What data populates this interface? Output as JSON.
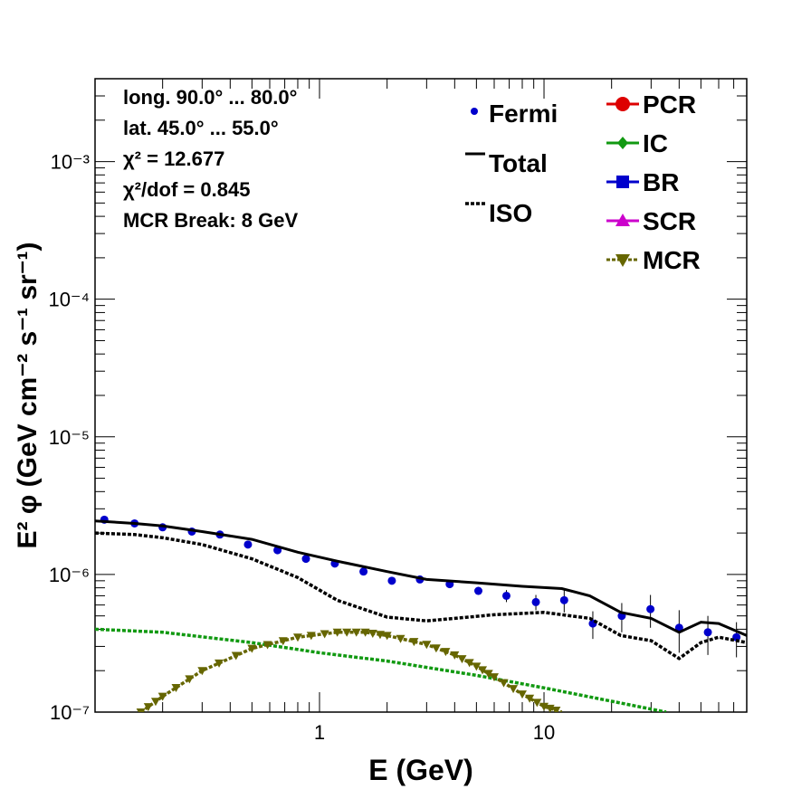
{
  "chart_data": {
    "type": "line",
    "xlabel": "E (GeV)",
    "ylabel": "E² φ (GeV cm⁻² s⁻¹ sr⁻¹)",
    "xscale": "log",
    "yscale": "log",
    "xlim": [
      0.1,
      80
    ],
    "ylim": [
      1e-07,
      0.004
    ],
    "x_tick_labels": [
      "1",
      "10"
    ],
    "y_tick_labels": [
      "10⁻⁷",
      "10⁻⁶",
      "10⁻⁵",
      "10⁻⁴",
      "10⁻³"
    ],
    "stats": [
      "long. 90.0° ... 80.0°",
      "lat. 45.0° ... 55.0°",
      "χ² = 12.677",
      "χ²/dof = 0.845",
      "MCR Break:  8 GeV"
    ],
    "legend_left": [
      {
        "label": "Fermi",
        "style": "dot",
        "color": "#0000cc"
      },
      {
        "label": "Total",
        "style": "solid",
        "color": "#000000"
      },
      {
        "label": "ISO",
        "style": "dotted",
        "color": "#000000"
      }
    ],
    "legend_right": [
      {
        "label": "PCR",
        "marker": "circle",
        "color": "#dd0000"
      },
      {
        "label": "IC",
        "marker": "diamond",
        "color": "#119911"
      },
      {
        "label": "BR",
        "marker": "square",
        "color": "#0000cc"
      },
      {
        "label": "SCR",
        "marker": "triangle-up",
        "color": "#cc00cc"
      },
      {
        "label": "MCR",
        "marker": "triangle-down",
        "color": "#666600"
      }
    ],
    "series": [
      {
        "name": "Fermi",
        "style": "points",
        "color": "#0000cc",
        "x": [
          0.11,
          0.15,
          0.2,
          0.27,
          0.36,
          0.48,
          0.65,
          0.87,
          1.17,
          1.57,
          2.1,
          2.8,
          3.8,
          5.1,
          6.8,
          9.2,
          12.3,
          16.5,
          22.2,
          29.8,
          40,
          53.7,
          72
        ],
        "y": [
          2.5e-06,
          2.35e-06,
          2.2e-06,
          2.05e-06,
          1.95e-06,
          1.65e-06,
          1.5e-06,
          1.3e-06,
          1.2e-06,
          1.05e-06,
          9e-07,
          9.2e-07,
          8.5e-07,
          7.6e-07,
          7e-07,
          6.3e-07,
          6.5e-07,
          4.4e-07,
          5e-07,
          5.6e-07,
          4.1e-07,
          3.8e-07,
          3.5e-07
        ],
        "err": [
          1e-07,
          8e-08,
          7e-08,
          6e-08,
          6e-08,
          5e-08,
          5e-08,
          5e-08,
          4e-08,
          4e-08,
          4e-08,
          4e-08,
          5e-08,
          5e-08,
          7e-08,
          8e-08,
          1.2e-07,
          1e-07,
          1.2e-07,
          1.5e-07,
          1.4e-07,
          1.2e-07,
          1e-07
        ]
      },
      {
        "name": "Total",
        "style": "solid",
        "color": "#000000",
        "x": [
          0.1,
          0.15,
          0.2,
          0.3,
          0.5,
          0.8,
          1.2,
          2,
          3,
          5,
          8,
          12,
          16,
          22,
          30,
          40,
          50,
          60,
          80
        ],
        "y": [
          2.45e-06,
          2.35e-06,
          2.25e-06,
          2.05e-06,
          1.8e-06,
          1.45e-06,
          1.25e-06,
          1.05e-06,
          9.2e-07,
          8.7e-07,
          8.2e-07,
          7.9e-07,
          7e-07,
          5.3e-07,
          4.8e-07,
          3.8e-07,
          4.5e-07,
          4.4e-07,
          3.6e-07
        ]
      },
      {
        "name": "ISO",
        "style": "dotted",
        "color": "#000000",
        "x": [
          0.1,
          0.15,
          0.2,
          0.3,
          0.5,
          0.8,
          1.2,
          2,
          3,
          4,
          6,
          10,
          16,
          22,
          30,
          40,
          50,
          60,
          80
        ],
        "y": [
          2e-06,
          1.95e-06,
          1.85e-06,
          1.65e-06,
          1.3e-06,
          9.5e-07,
          6.5e-07,
          4.9e-07,
          4.6e-07,
          4.8e-07,
          5.1e-07,
          5.3e-07,
          4.8e-07,
          3.6e-07,
          3.3e-07,
          2.45e-07,
          3.2e-07,
          3.5e-07,
          3.2e-07
        ]
      },
      {
        "name": "IC",
        "style": "dotted",
        "color": "#119911",
        "x": [
          0.1,
          0.2,
          0.5,
          1,
          2,
          5,
          10,
          20,
          35
        ],
        "y": [
          4e-07,
          3.8e-07,
          3.2e-07,
          2.7e-07,
          2.35e-07,
          1.85e-07,
          1.5e-07,
          1.2e-07,
          1e-07
        ]
      },
      {
        "name": "MCR",
        "style": "dotted",
        "color": "#666600",
        "x": [
          0.16,
          0.2,
          0.3,
          0.5,
          0.8,
          1.2,
          1.6,
          2,
          3,
          4,
          5,
          6,
          8,
          10,
          12
        ],
        "y": [
          1e-07,
          1.3e-07,
          2e-07,
          2.9e-07,
          3.5e-07,
          3.8e-07,
          3.8e-07,
          3.6e-07,
          3.1e-07,
          2.6e-07,
          2.15e-07,
          1.8e-07,
          1.35e-07,
          1.1e-07,
          1e-07
        ]
      }
    ]
  }
}
